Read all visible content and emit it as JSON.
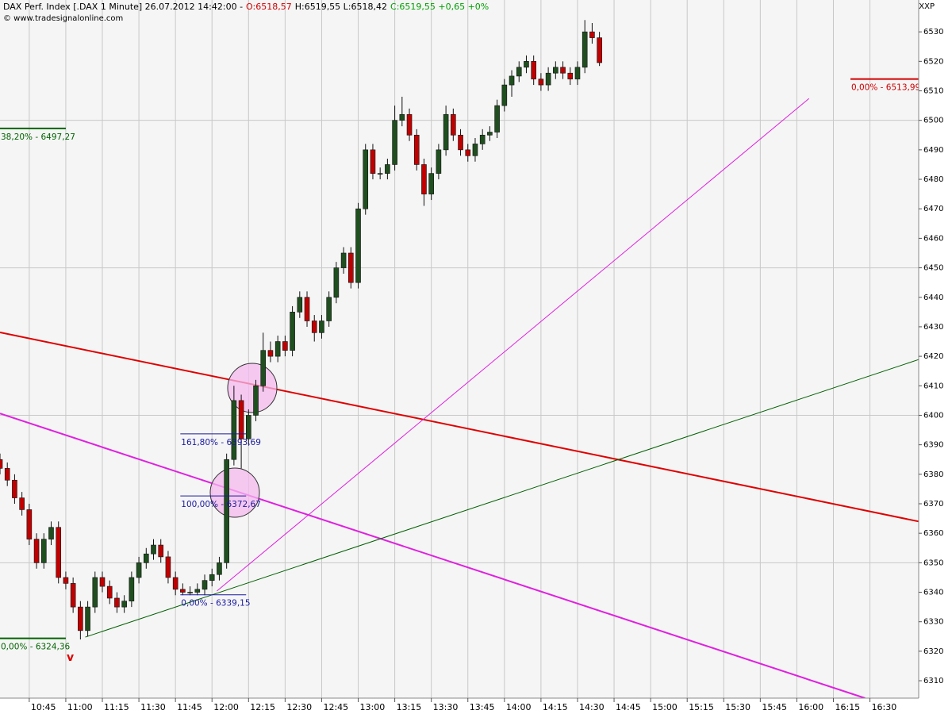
{
  "header": {
    "title": "DAX Perf. Index [.DAX 1 Minute] 26.07.2012 14:42:00 -",
    "open": "O:6518,57",
    "high_low": "H:6519,55 L:6518,42",
    "close": "C:6519,55 +0,65 +0%",
    "copyright": "© www.tradesignalonline.com",
    "symbol": "XXP"
  },
  "chart_data": {
    "type": "candlestick",
    "x": [
      "10:33",
      "10:36",
      "10:39",
      "10:42",
      "10:45",
      "10:48",
      "10:51",
      "10:54",
      "10:57",
      "11:00",
      "11:03",
      "11:06",
      "11:09",
      "11:12",
      "11:15",
      "11:18",
      "11:21",
      "11:24",
      "11:27",
      "11:30",
      "11:33",
      "11:36",
      "11:39",
      "11:42",
      "11:45",
      "11:48",
      "11:51",
      "11:54",
      "11:57",
      "12:00",
      "12:03",
      "12:06",
      "12:09",
      "12:12",
      "12:15",
      "12:18",
      "12:21",
      "12:24",
      "12:27",
      "12:30",
      "12:33",
      "12:36",
      "12:39",
      "12:42",
      "12:45",
      "12:48",
      "12:51",
      "12:54",
      "12:57",
      "13:00",
      "13:03",
      "13:06",
      "13:09",
      "13:12",
      "13:15",
      "13:18",
      "13:21",
      "13:24",
      "13:27",
      "13:30",
      "13:33",
      "13:36",
      "13:39",
      "13:42",
      "13:45",
      "13:48",
      "13:51",
      "13:54",
      "13:57",
      "14:00",
      "14:03",
      "14:06",
      "14:09",
      "14:12",
      "14:15",
      "14:18",
      "14:21",
      "14:24",
      "14:27",
      "14:30",
      "14:33",
      "14:36",
      "14:39"
    ],
    "open": [
      6385,
      6382,
      6378,
      6372,
      6368,
      6358,
      6350,
      6358,
      6362,
      6345,
      6343,
      6335,
      6327,
      6335,
      6345,
      6342,
      6338,
      6335,
      6337,
      6345,
      6350,
      6353,
      6356,
      6352,
      6345,
      6341,
      6340,
      6340,
      6341,
      6344,
      6346,
      6350,
      6385,
      6405,
      6392,
      6400,
      6410,
      6422,
      6420,
      6425,
      6422,
      6435,
      6440,
      6432,
      6428,
      6432,
      6440,
      6450,
      6455,
      6445,
      6470,
      6490,
      6482,
      6482,
      6485,
      6500,
      6502,
      6495,
      6485,
      6475,
      6482,
      6490,
      6502,
      6495,
      6490,
      6488,
      6492,
      6495,
      6496,
      6505,
      6512,
      6515,
      6518,
      6520,
      6514,
      6512,
      6516,
      6518,
      6516,
      6514,
      6518,
      6530,
      6528
    ],
    "high": [
      6387,
      6384,
      6380,
      6374,
      6370,
      6360,
      6360,
      6364,
      6364,
      6347,
      6345,
      6337,
      6337,
      6347,
      6347,
      6344,
      6340,
      6339,
      6347,
      6352,
      6355,
      6358,
      6358,
      6354,
      6347,
      6343,
      6342,
      6343,
      6346,
      6348,
      6352,
      6387,
      6410,
      6407,
      6402,
      6412,
      6428,
      6425,
      6427,
      6427,
      6437,
      6442,
      6442,
      6434,
      6434,
      6442,
      6452,
      6457,
      6457,
      6472,
      6492,
      6492,
      6484,
      6487,
      6505,
      6508,
      6504,
      6497,
      6487,
      6484,
      6492,
      6505,
      6504,
      6497,
      6492,
      6494,
      6497,
      6498,
      6507,
      6514,
      6517,
      6520,
      6522,
      6522,
      6516,
      6518,
      6520,
      6520,
      6518,
      6520,
      6534,
      6533,
      6530
    ],
    "low": [
      6380,
      6376,
      6370,
      6366,
      6356,
      6348,
      6348,
      6356,
      6343,
      6341,
      6333,
      6324,
      6325,
      6333,
      6340,
      6336,
      6333,
      6333,
      6335,
      6343,
      6348,
      6351,
      6350,
      6343,
      6339,
      6339,
      6339,
      6339,
      6339,
      6342,
      6344,
      6348,
      6383,
      6382,
      6390,
      6398,
      6408,
      6418,
      6418,
      6420,
      6420,
      6433,
      6430,
      6425,
      6426,
      6430,
      6438,
      6448,
      6443,
      6443,
      6468,
      6480,
      6480,
      6480,
      6483,
      6498,
      6493,
      6483,
      6471,
      6473,
      6480,
      6488,
      6493,
      6488,
      6486,
      6486,
      6490,
      6493,
      6494,
      6503,
      6508,
      6513,
      6516,
      6512,
      6510,
      6510,
      6514,
      6514,
      6512,
      6512,
      6516,
      6526,
      6518.42
    ],
    "close": [
      6382,
      6378,
      6372,
      6368,
      6358,
      6350,
      6358,
      6362,
      6345,
      6343,
      6335,
      6327,
      6335,
      6345,
      6342,
      6338,
      6335,
      6337,
      6345,
      6350,
      6353,
      6356,
      6352,
      6345,
      6341,
      6340,
      6340,
      6341,
      6344,
      6346,
      6350,
      6385,
      6405,
      6392,
      6400,
      6410,
      6422,
      6420,
      6425,
      6422,
      6435,
      6440,
      6432,
      6428,
      6432,
      6440,
      6450,
      6455,
      6445,
      6470,
      6490,
      6482,
      6482,
      6485,
      6500,
      6502,
      6495,
      6485,
      6475,
      6482,
      6490,
      6502,
      6495,
      6490,
      6488,
      6492,
      6495,
      6496,
      6505,
      6512,
      6515,
      6518,
      6520,
      6514,
      6512,
      6516,
      6518,
      6516,
      6514,
      6518,
      6530,
      6528,
      6519.55
    ],
    "up_color": "#1f4f1f",
    "down_color": "#c00000",
    "xlim": [
      "10:33",
      "16:50"
    ],
    "xticks": [
      "10:45",
      "11:00",
      "11:15",
      "11:30",
      "11:45",
      "12:00",
      "12:15",
      "12:30",
      "12:45",
      "13:00",
      "13:15",
      "13:30",
      "13:45",
      "14:00",
      "14:15",
      "14:30",
      "14:45",
      "15:00",
      "15:15",
      "15:30",
      "15:45",
      "16:00",
      "16:15",
      "16:30"
    ],
    "ylim": [
      6304.1,
      6540.8
    ],
    "yticks": [
      6310,
      6320,
      6330,
      6340,
      6350,
      6360,
      6370,
      6380,
      6390,
      6400,
      6410,
      6420,
      6430,
      6440,
      6450,
      6460,
      6470,
      6480,
      6490,
      6500,
      6510,
      6520,
      6530
    ],
    "ygrid": [
      6350,
      6400,
      6450,
      6500
    ],
    "trendlines": [
      {
        "color": "#e00000",
        "width": 2,
        "x": [
          "10:33",
          "16:50"
        ],
        "values": [
          6428.1,
          6364.0
        ]
      },
      {
        "color": "#e020e0",
        "width": 2,
        "x": [
          "10:33",
          "16:28"
        ],
        "values": [
          6400.6,
          6304.1
        ]
      },
      {
        "color": "#e020e0",
        "width": 1,
        "x": [
          "12:02",
          "16:05"
        ],
        "values": [
          6340.4,
          6507.4
        ]
      },
      {
        "color": "#006000",
        "width": 1,
        "x": [
          "11:08",
          "16:50"
        ],
        "values": [
          6324.8,
          6418.9
        ]
      }
    ],
    "levels": [
      {
        "value": 6497.27,
        "label": "38,20% - 6497,27",
        "color": "#006400",
        "x": [
          "10:33",
          "11:00"
        ]
      },
      {
        "value": 6324.36,
        "label": "0,00% - 6324,36",
        "color": "#006400",
        "x": [
          "10:33",
          "11:00"
        ]
      },
      {
        "value": 6513.99,
        "label": "0,00% - 6513,99",
        "color": "#d00000",
        "x": [
          "16:22",
          "16:50"
        ]
      },
      {
        "value": 6393.69,
        "label": "161,80% - 6393,69",
        "color": "#1a1aa0",
        "x": [
          "11:47",
          "12:14"
        ]
      },
      {
        "value": 6372.67,
        "label": "100,00% - 6372,67",
        "color": "#1a1aa0",
        "x": [
          "11:47",
          "12:14"
        ]
      },
      {
        "value": 6339.15,
        "label": "0,00% - 6339,15",
        "color": "#1a1aa0",
        "x": [
          "11:47",
          "12:14"
        ]
      }
    ],
    "signal": "v"
  }
}
